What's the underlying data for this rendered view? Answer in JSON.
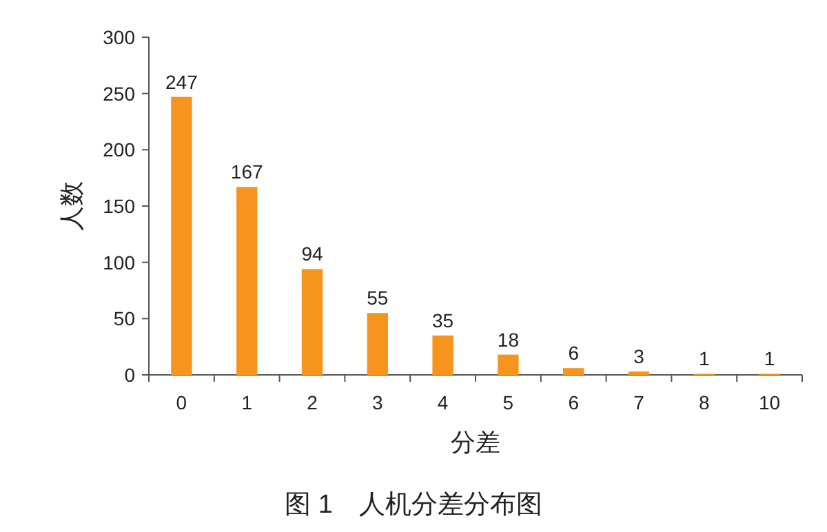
{
  "chart_data": {
    "type": "bar",
    "title": "图 1　人机分差分布图",
    "xlabel": "分差",
    "ylabel": "人数",
    "categories": [
      "0",
      "1",
      "2",
      "3",
      "4",
      "5",
      "6",
      "7",
      "8",
      "10"
    ],
    "values": [
      247,
      167,
      94,
      55,
      35,
      18,
      6,
      3,
      1,
      1
    ],
    "color": "#f7941d",
    "ylim": [
      0,
      300
    ],
    "yticks": [
      0,
      50,
      100,
      150,
      200,
      250,
      300
    ],
    "data_labels": true,
    "grid": false
  }
}
